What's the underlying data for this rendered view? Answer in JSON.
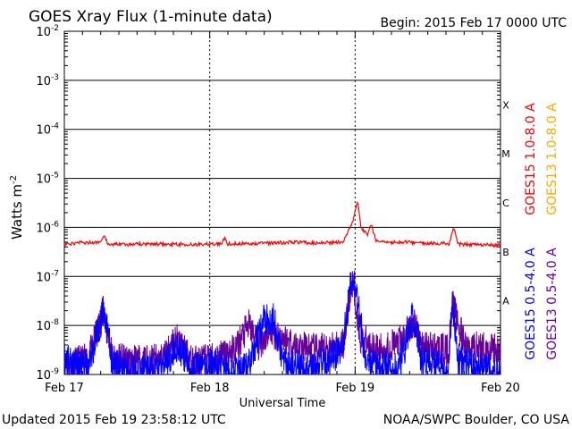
{
  "chart_data": {
    "type": "line",
    "title": "GOES Xray Flux (1-minute data)",
    "begin_label": "Begin:  2015 Feb 17 0000 UTC",
    "xlabel": "Universal Time",
    "ylabel": "Watts m",
    "ylabel_exp": "-2",
    "y_scale": "log",
    "ylim": [
      1e-09,
      0.01
    ],
    "y_ticks": [
      {
        "mant": "10",
        "exp": "-2"
      },
      {
        "mant": "10",
        "exp": "-3"
      },
      {
        "mant": "10",
        "exp": "-4"
      },
      {
        "mant": "10",
        "exp": "-5"
      },
      {
        "mant": "10",
        "exp": "-6"
      },
      {
        "mant": "10",
        "exp": "-7"
      },
      {
        "mant": "10",
        "exp": "-8"
      },
      {
        "mant": "10",
        "exp": "-9"
      }
    ],
    "xlim": [
      0,
      72
    ],
    "x_unit": "hours since 2015 Feb 17 00:00 UTC",
    "x_ticks": [
      "Feb 17",
      "Feb 18",
      "Feb 19",
      "Feb 20"
    ],
    "flare_classes": [
      "X",
      "M",
      "C",
      "B",
      "A"
    ],
    "grid": true,
    "series": [
      {
        "name": "GOES15 1.0-8.0 A",
        "color": "#ff0000",
        "x": [
          0,
          2,
          6,
          6.6,
          7.2,
          10,
          14,
          22,
          26,
          26.5,
          27,
          34,
          38,
          42,
          46,
          47.6,
          48.4,
          49,
          50,
          50.6,
          51.4,
          52,
          54,
          56,
          60,
          63.5,
          64.3,
          65,
          68,
          72
        ],
        "y": [
          4.5e-07,
          4.8e-07,
          5e-07,
          6.5e-07,
          4.6e-07,
          4.5e-07,
          4.6e-07,
          4.5e-07,
          4.7e-07,
          6e-07,
          4.6e-07,
          4.8e-07,
          5e-07,
          4.8e-07,
          5e-07,
          1.3e-06,
          3.5e-06,
          1e-06,
          7e-07,
          1.2e-06,
          5.5e-07,
          5e-07,
          4.9e-07,
          5e-07,
          4.8e-07,
          4.7e-07,
          1e-06,
          4.6e-07,
          4.4e-07,
          4.3e-07
        ]
      },
      {
        "name": "GOES13 1.0-8.0 A",
        "color": "#ffaa00",
        "x": [],
        "y": []
      },
      {
        "name": "GOES15 0.5-4.0 A",
        "color": "#0000ff",
        "x": [
          0,
          4,
          6.5,
          8,
          12,
          16,
          18.5,
          21,
          24,
          30,
          33,
          34.5,
          36,
          40,
          44,
          46,
          47.5,
          48.5,
          49.5,
          51,
          55,
          56,
          57.5,
          59,
          63.5,
          64,
          65,
          68,
          72
        ],
        "y": [
          2e-09,
          1.5e-09,
          2.2e-08,
          1.5e-09,
          1.2e-09,
          1.3e-09,
          4e-09,
          1.2e-09,
          1.5e-09,
          1.2e-09,
          1.3e-08,
          1.5e-08,
          2e-09,
          1.2e-09,
          2e-09,
          4e-09,
          1.2e-07,
          3e-08,
          3e-09,
          1.5e-09,
          1.2e-09,
          3e-09,
          1.5e-08,
          2e-09,
          1.2e-09,
          5e-08,
          2e-09,
          1.3e-09,
          1.2e-09
        ]
      },
      {
        "name": "GOES13 0.5-4.0 A",
        "color": "#660099",
        "x": [
          0,
          4,
          6.5,
          8,
          12,
          16,
          18.5,
          21,
          24,
          28,
          30.5,
          32,
          34,
          38,
          42,
          46,
          47.5,
          49,
          52,
          56,
          57.5,
          59,
          63.5,
          64,
          66,
          72
        ],
        "y": [
          1.5e-09,
          2e-09,
          2e-08,
          2e-09,
          1.8e-09,
          2e-09,
          5e-09,
          1.8e-09,
          2e-09,
          3e-09,
          1e-08,
          4e-09,
          8e-09,
          4e-09,
          3e-09,
          4e-09,
          8e-08,
          5e-09,
          3e-09,
          5e-09,
          1.2e-08,
          4e-09,
          3e-09,
          3e-08,
          4e-09,
          3e-09
        ]
      }
    ]
  },
  "footer": {
    "updated": "Updated 2015 Feb 19 23:58:12 UTC",
    "source": "NOAA/SWPC Boulder, CO USA"
  }
}
